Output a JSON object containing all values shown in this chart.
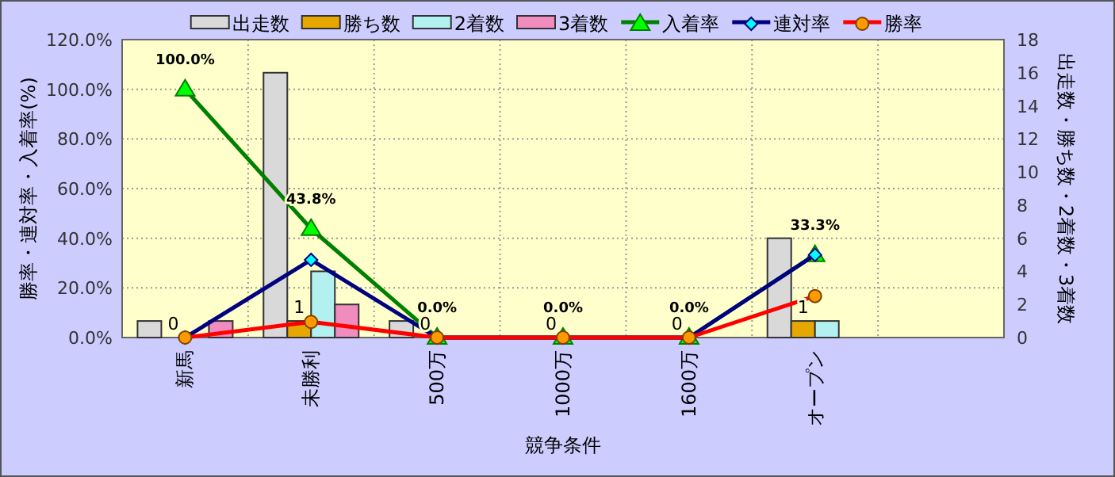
{
  "chart_data": {
    "type": "bar",
    "xlabel": "競争条件",
    "ylabel": "勝率・連対率・入着率(%)",
    "y2label": "出走数・勝ち数・2着数・3着数",
    "categories": [
      "新馬",
      "未勝利",
      "500万",
      "1000万",
      "1600万",
      "オープン",
      null
    ],
    "series": [
      {
        "name": "出走数",
        "type": "bar",
        "axis": "y2",
        "color": "#d9d9d9",
        "values": [
          1,
          16,
          1,
          0,
          0,
          6,
          null
        ]
      },
      {
        "name": "勝ち数",
        "type": "bar",
        "axis": "y2",
        "color": "#e6a800",
        "values": [
          0,
          1,
          0,
          0,
          0,
          1,
          null
        ],
        "value_labels": [
          "0",
          "1",
          "0",
          "0",
          "0",
          "1",
          null
        ]
      },
      {
        "name": "2着数",
        "type": "bar",
        "axis": "y2",
        "color": "#b3f0f0",
        "values": [
          0,
          4,
          0,
          0,
          0,
          1,
          null
        ]
      },
      {
        "name": "3着数",
        "type": "bar",
        "axis": "y2",
        "color": "#f08cbe",
        "values": [
          1,
          2,
          0,
          0,
          0,
          0,
          null
        ]
      },
      {
        "name": "入着率",
        "type": "line",
        "color": "#008000",
        "marker": "triangle",
        "values": [
          100.0,
          43.8,
          0,
          0,
          0,
          33.3,
          null
        ],
        "value_labels": [
          "100.0%",
          "43.8%",
          "0.0%",
          "0.0%",
          "0.0%",
          "33.3%",
          null
        ]
      },
      {
        "name": "連対率",
        "type": "line",
        "color": "#000080",
        "marker": "diamond",
        "values": [
          0,
          31.3,
          0,
          0,
          0,
          33.3,
          null
        ]
      },
      {
        "name": "勝率",
        "type": "line",
        "color": "#ff0000",
        "marker": "circle",
        "values": [
          0,
          6.3,
          0,
          0,
          0,
          16.7,
          null
        ]
      }
    ],
    "ylim": [
      0,
      120
    ],
    "yticks": [
      {
        "value": 0,
        "label": "0.0%"
      },
      {
        "value": 20,
        "label": "20.0%"
      },
      {
        "value": 40,
        "label": "40.0%"
      },
      {
        "value": 60,
        "label": "60.0%"
      },
      {
        "value": 80,
        "label": "80.0%"
      },
      {
        "value": 100,
        "label": "100.0%"
      },
      {
        "value": 120,
        "label": "120.0%"
      }
    ],
    "y2lim": [
      0,
      18
    ],
    "y2ticks": [
      0,
      2,
      4,
      6,
      8,
      10,
      12,
      14,
      16,
      18
    ],
    "grid": true,
    "legend": "top"
  }
}
